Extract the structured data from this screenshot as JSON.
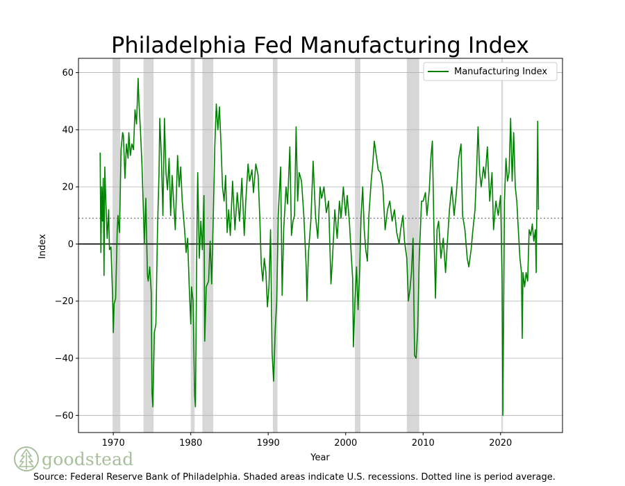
{
  "chart_data": {
    "type": "line",
    "title": "Philadelphia Fed Manufacturing Index",
    "xlabel": "Year",
    "ylabel": "Index",
    "xlim": [
      1965.5,
      2028
    ],
    "ylim": [
      -66,
      65
    ],
    "x_ticks": [
      1970,
      1980,
      1990,
      2000,
      2010,
      2020
    ],
    "y_ticks": [
      -60,
      -40,
      -20,
      0,
      20,
      40,
      60
    ],
    "grid": "horizontal",
    "legend_position": "top-right",
    "series": [
      {
        "name": "Manufacturing Index",
        "color": "#008000",
        "points": [
          [
            1968.3,
            32
          ],
          [
            1968.4,
            -3
          ],
          [
            1968.5,
            20
          ],
          [
            1968.6,
            8
          ],
          [
            1968.7,
            23
          ],
          [
            1968.8,
            -11
          ],
          [
            1968.9,
            27
          ],
          [
            1969.0,
            18
          ],
          [
            1969.2,
            2
          ],
          [
            1969.4,
            12
          ],
          [
            1969.5,
            -2
          ],
          [
            1969.7,
            -1
          ],
          [
            1969.9,
            -18
          ],
          [
            1970.0,
            -31
          ],
          [
            1970.1,
            -21
          ],
          [
            1970.3,
            -19
          ],
          [
            1970.5,
            5
          ],
          [
            1970.6,
            10
          ],
          [
            1970.8,
            4
          ],
          [
            1971.0,
            33
          ],
          [
            1971.2,
            39
          ],
          [
            1971.3,
            38
          ],
          [
            1971.5,
            23
          ],
          [
            1971.7,
            35
          ],
          [
            1971.9,
            30
          ],
          [
            1972.0,
            39
          ],
          [
            1972.2,
            31
          ],
          [
            1972.4,
            35
          ],
          [
            1972.6,
            33
          ],
          [
            1972.8,
            47
          ],
          [
            1973.0,
            42
          ],
          [
            1973.2,
            58
          ],
          [
            1973.3,
            50
          ],
          [
            1973.5,
            40
          ],
          [
            1973.7,
            28
          ],
          [
            1973.9,
            10
          ],
          [
            1974.0,
            0
          ],
          [
            1974.2,
            16
          ],
          [
            1974.4,
            -11
          ],
          [
            1974.5,
            -13
          ],
          [
            1974.7,
            -8
          ],
          [
            1974.9,
            -17
          ],
          [
            1975.0,
            -52
          ],
          [
            1975.1,
            -57
          ],
          [
            1975.3,
            -31
          ],
          [
            1975.5,
            -28
          ],
          [
            1975.7,
            5
          ],
          [
            1975.9,
            25
          ],
          [
            1976.0,
            44
          ],
          [
            1976.2,
            31
          ],
          [
            1976.4,
            10
          ],
          [
            1976.6,
            44
          ],
          [
            1976.8,
            25
          ],
          [
            1977.0,
            19
          ],
          [
            1977.2,
            30
          ],
          [
            1977.4,
            10
          ],
          [
            1977.6,
            24
          ],
          [
            1977.8,
            14
          ],
          [
            1978.0,
            5
          ],
          [
            1978.3,
            31
          ],
          [
            1978.5,
            20
          ],
          [
            1978.7,
            27
          ],
          [
            1978.9,
            15
          ],
          [
            1979.2,
            5
          ],
          [
            1979.4,
            -3
          ],
          [
            1979.6,
            2
          ],
          [
            1979.8,
            -15
          ],
          [
            1980.0,
            -28
          ],
          [
            1980.1,
            -15
          ],
          [
            1980.3,
            -20
          ],
          [
            1980.5,
            -53
          ],
          [
            1980.6,
            -57
          ],
          [
            1980.8,
            5
          ],
          [
            1980.9,
            25
          ],
          [
            1981.1,
            -5
          ],
          [
            1981.3,
            8
          ],
          [
            1981.5,
            -2
          ],
          [
            1981.7,
            17
          ],
          [
            1981.8,
            -34
          ],
          [
            1982.0,
            -15
          ],
          [
            1982.3,
            -13
          ],
          [
            1982.5,
            1
          ],
          [
            1982.7,
            -14
          ],
          [
            1982.9,
            8
          ],
          [
            1983.1,
            34
          ],
          [
            1983.3,
            49
          ],
          [
            1983.5,
            40
          ],
          [
            1983.7,
            48
          ],
          [
            1983.9,
            35
          ],
          [
            1984.1,
            20
          ],
          [
            1984.3,
            15
          ],
          [
            1984.5,
            24
          ],
          [
            1984.7,
            4
          ],
          [
            1984.9,
            12
          ],
          [
            1985.1,
            3
          ],
          [
            1985.4,
            22
          ],
          [
            1985.7,
            5
          ],
          [
            1986.0,
            18
          ],
          [
            1986.3,
            8
          ],
          [
            1986.6,
            23
          ],
          [
            1986.9,
            3
          ],
          [
            1987.1,
            15
          ],
          [
            1987.4,
            28
          ],
          [
            1987.6,
            22
          ],
          [
            1987.9,
            26
          ],
          [
            1988.1,
            18
          ],
          [
            1988.4,
            28
          ],
          [
            1988.7,
            24
          ],
          [
            1988.9,
            10
          ],
          [
            1989.1,
            -7
          ],
          [
            1989.3,
            -13
          ],
          [
            1989.5,
            -5
          ],
          [
            1989.7,
            -10
          ],
          [
            1989.9,
            -22
          ],
          [
            1990.1,
            -15
          ],
          [
            1990.3,
            5
          ],
          [
            1990.5,
            -38
          ],
          [
            1990.7,
            -48
          ],
          [
            1990.9,
            -30
          ],
          [
            1991.1,
            -20
          ],
          [
            1991.3,
            10
          ],
          [
            1991.6,
            27
          ],
          [
            1991.8,
            -18
          ],
          [
            1992.0,
            5
          ],
          [
            1992.3,
            20
          ],
          [
            1992.5,
            14
          ],
          [
            1992.8,
            34
          ],
          [
            1993.0,
            3
          ],
          [
            1993.2,
            8
          ],
          [
            1993.4,
            10
          ],
          [
            1993.6,
            41
          ],
          [
            1993.8,
            15
          ],
          [
            1994.0,
            25
          ],
          [
            1994.3,
            22
          ],
          [
            1994.6,
            10
          ],
          [
            1994.9,
            -8
          ],
          [
            1995.0,
            -20
          ],
          [
            1995.2,
            -3
          ],
          [
            1995.5,
            8
          ],
          [
            1995.8,
            29
          ],
          [
            1996.1,
            10
          ],
          [
            1996.4,
            2
          ],
          [
            1996.7,
            20
          ],
          [
            1996.9,
            16
          ],
          [
            1997.2,
            20
          ],
          [
            1997.5,
            11
          ],
          [
            1997.8,
            15
          ],
          [
            1998.1,
            -14
          ],
          [
            1998.3,
            -5
          ],
          [
            1998.6,
            12
          ],
          [
            1998.9,
            2
          ],
          [
            1999.2,
            15
          ],
          [
            1999.4,
            9
          ],
          [
            1999.7,
            20
          ],
          [
            2000.0,
            10
          ],
          [
            2000.2,
            17
          ],
          [
            2000.5,
            7
          ],
          [
            2000.7,
            -3
          ],
          [
            2000.9,
            -12
          ],
          [
            2001.0,
            -36
          ],
          [
            2001.2,
            -20
          ],
          [
            2001.4,
            -8
          ],
          [
            2001.6,
            -23
          ],
          [
            2001.8,
            -10
          ],
          [
            2002.0,
            10
          ],
          [
            2002.2,
            20
          ],
          [
            2002.4,
            5
          ],
          [
            2002.6,
            -2
          ],
          [
            2002.8,
            -6
          ],
          [
            2003.0,
            10
          ],
          [
            2003.3,
            22
          ],
          [
            2003.5,
            28
          ],
          [
            2003.7,
            36
          ],
          [
            2004.0,
            30
          ],
          [
            2004.2,
            26
          ],
          [
            2004.5,
            25
          ],
          [
            2004.8,
            20
          ],
          [
            2005.1,
            5
          ],
          [
            2005.4,
            12
          ],
          [
            2005.7,
            15
          ],
          [
            2006.0,
            8
          ],
          [
            2006.3,
            12
          ],
          [
            2006.6,
            4
          ],
          [
            2006.9,
            0
          ],
          [
            2007.1,
            5
          ],
          [
            2007.4,
            10
          ],
          [
            2007.6,
            1
          ],
          [
            2007.9,
            -5
          ],
          [
            2008.1,
            -20
          ],
          [
            2008.3,
            -16
          ],
          [
            2008.5,
            -10
          ],
          [
            2008.7,
            2
          ],
          [
            2008.9,
            -39
          ],
          [
            2009.1,
            -40
          ],
          [
            2009.3,
            -30
          ],
          [
            2009.5,
            -5
          ],
          [
            2009.8,
            15
          ],
          [
            2010.0,
            15
          ],
          [
            2010.3,
            18
          ],
          [
            2010.5,
            10
          ],
          [
            2010.8,
            19
          ],
          [
            2011.0,
            30
          ],
          [
            2011.2,
            36
          ],
          [
            2011.4,
            5
          ],
          [
            2011.6,
            -19
          ],
          [
            2011.8,
            5
          ],
          [
            2012.0,
            8
          ],
          [
            2012.3,
            -5
          ],
          [
            2012.6,
            2
          ],
          [
            2012.9,
            -10
          ],
          [
            2013.1,
            -1
          ],
          [
            2013.4,
            12
          ],
          [
            2013.7,
            20
          ],
          [
            2014.0,
            10
          ],
          [
            2014.3,
            18
          ],
          [
            2014.6,
            30
          ],
          [
            2014.9,
            35
          ],
          [
            2015.1,
            10
          ],
          [
            2015.4,
            5
          ],
          [
            2015.7,
            -5
          ],
          [
            2015.9,
            -8
          ],
          [
            2016.2,
            -2
          ],
          [
            2016.4,
            4
          ],
          [
            2016.7,
            12
          ],
          [
            2016.9,
            25
          ],
          [
            2017.1,
            41
          ],
          [
            2017.3,
            25
          ],
          [
            2017.5,
            20
          ],
          [
            2017.8,
            27
          ],
          [
            2018.0,
            23
          ],
          [
            2018.3,
            34
          ],
          [
            2018.6,
            15
          ],
          [
            2018.9,
            25
          ],
          [
            2019.1,
            5
          ],
          [
            2019.4,
            15
          ],
          [
            2019.7,
            10
          ],
          [
            2020.0,
            17
          ],
          [
            2020.2,
            -12
          ],
          [
            2020.3,
            -60
          ],
          [
            2020.5,
            15
          ],
          [
            2020.7,
            30
          ],
          [
            2020.9,
            22
          ],
          [
            2021.1,
            25
          ],
          [
            2021.3,
            44
          ],
          [
            2021.5,
            22
          ],
          [
            2021.7,
            39
          ],
          [
            2021.9,
            20
          ],
          [
            2022.1,
            15
          ],
          [
            2022.3,
            5
          ],
          [
            2022.5,
            -5
          ],
          [
            2022.7,
            -10
          ],
          [
            2022.8,
            -33
          ],
          [
            2022.9,
            -10
          ],
          [
            2023.1,
            -15
          ],
          [
            2023.3,
            -10
          ],
          [
            2023.5,
            -13
          ],
          [
            2023.7,
            5
          ],
          [
            2023.9,
            3
          ],
          [
            2024.1,
            7
          ],
          [
            2024.3,
            1
          ],
          [
            2024.5,
            5
          ],
          [
            2024.6,
            -10
          ],
          [
            2024.8,
            43
          ],
          [
            2024.9,
            12
          ]
        ]
      }
    ],
    "recessions": [
      [
        1969.9,
        1970.9
      ],
      [
        1973.9,
        1975.2
      ],
      [
        1980.0,
        1980.5
      ],
      [
        1981.5,
        1982.9
      ],
      [
        1990.6,
        1991.2
      ],
      [
        2001.2,
        2001.9
      ],
      [
        2007.9,
        2009.5
      ],
      [
        2020.1,
        2020.3
      ]
    ],
    "reference_lines": [
      {
        "name": "Period average",
        "value": 9,
        "style": "dotted",
        "color": "#888888"
      },
      {
        "name": "Zero line",
        "value": 0,
        "style": "solid",
        "color": "#000000"
      }
    ]
  },
  "footer": {
    "source": "Source: Federal Reserve Bank of Philadelphia. Shaded areas indicate U.S. recessions. Dotted line is period average.",
    "logo_text": "goodstead",
    "logo_icon": "pine-tree-icon"
  }
}
